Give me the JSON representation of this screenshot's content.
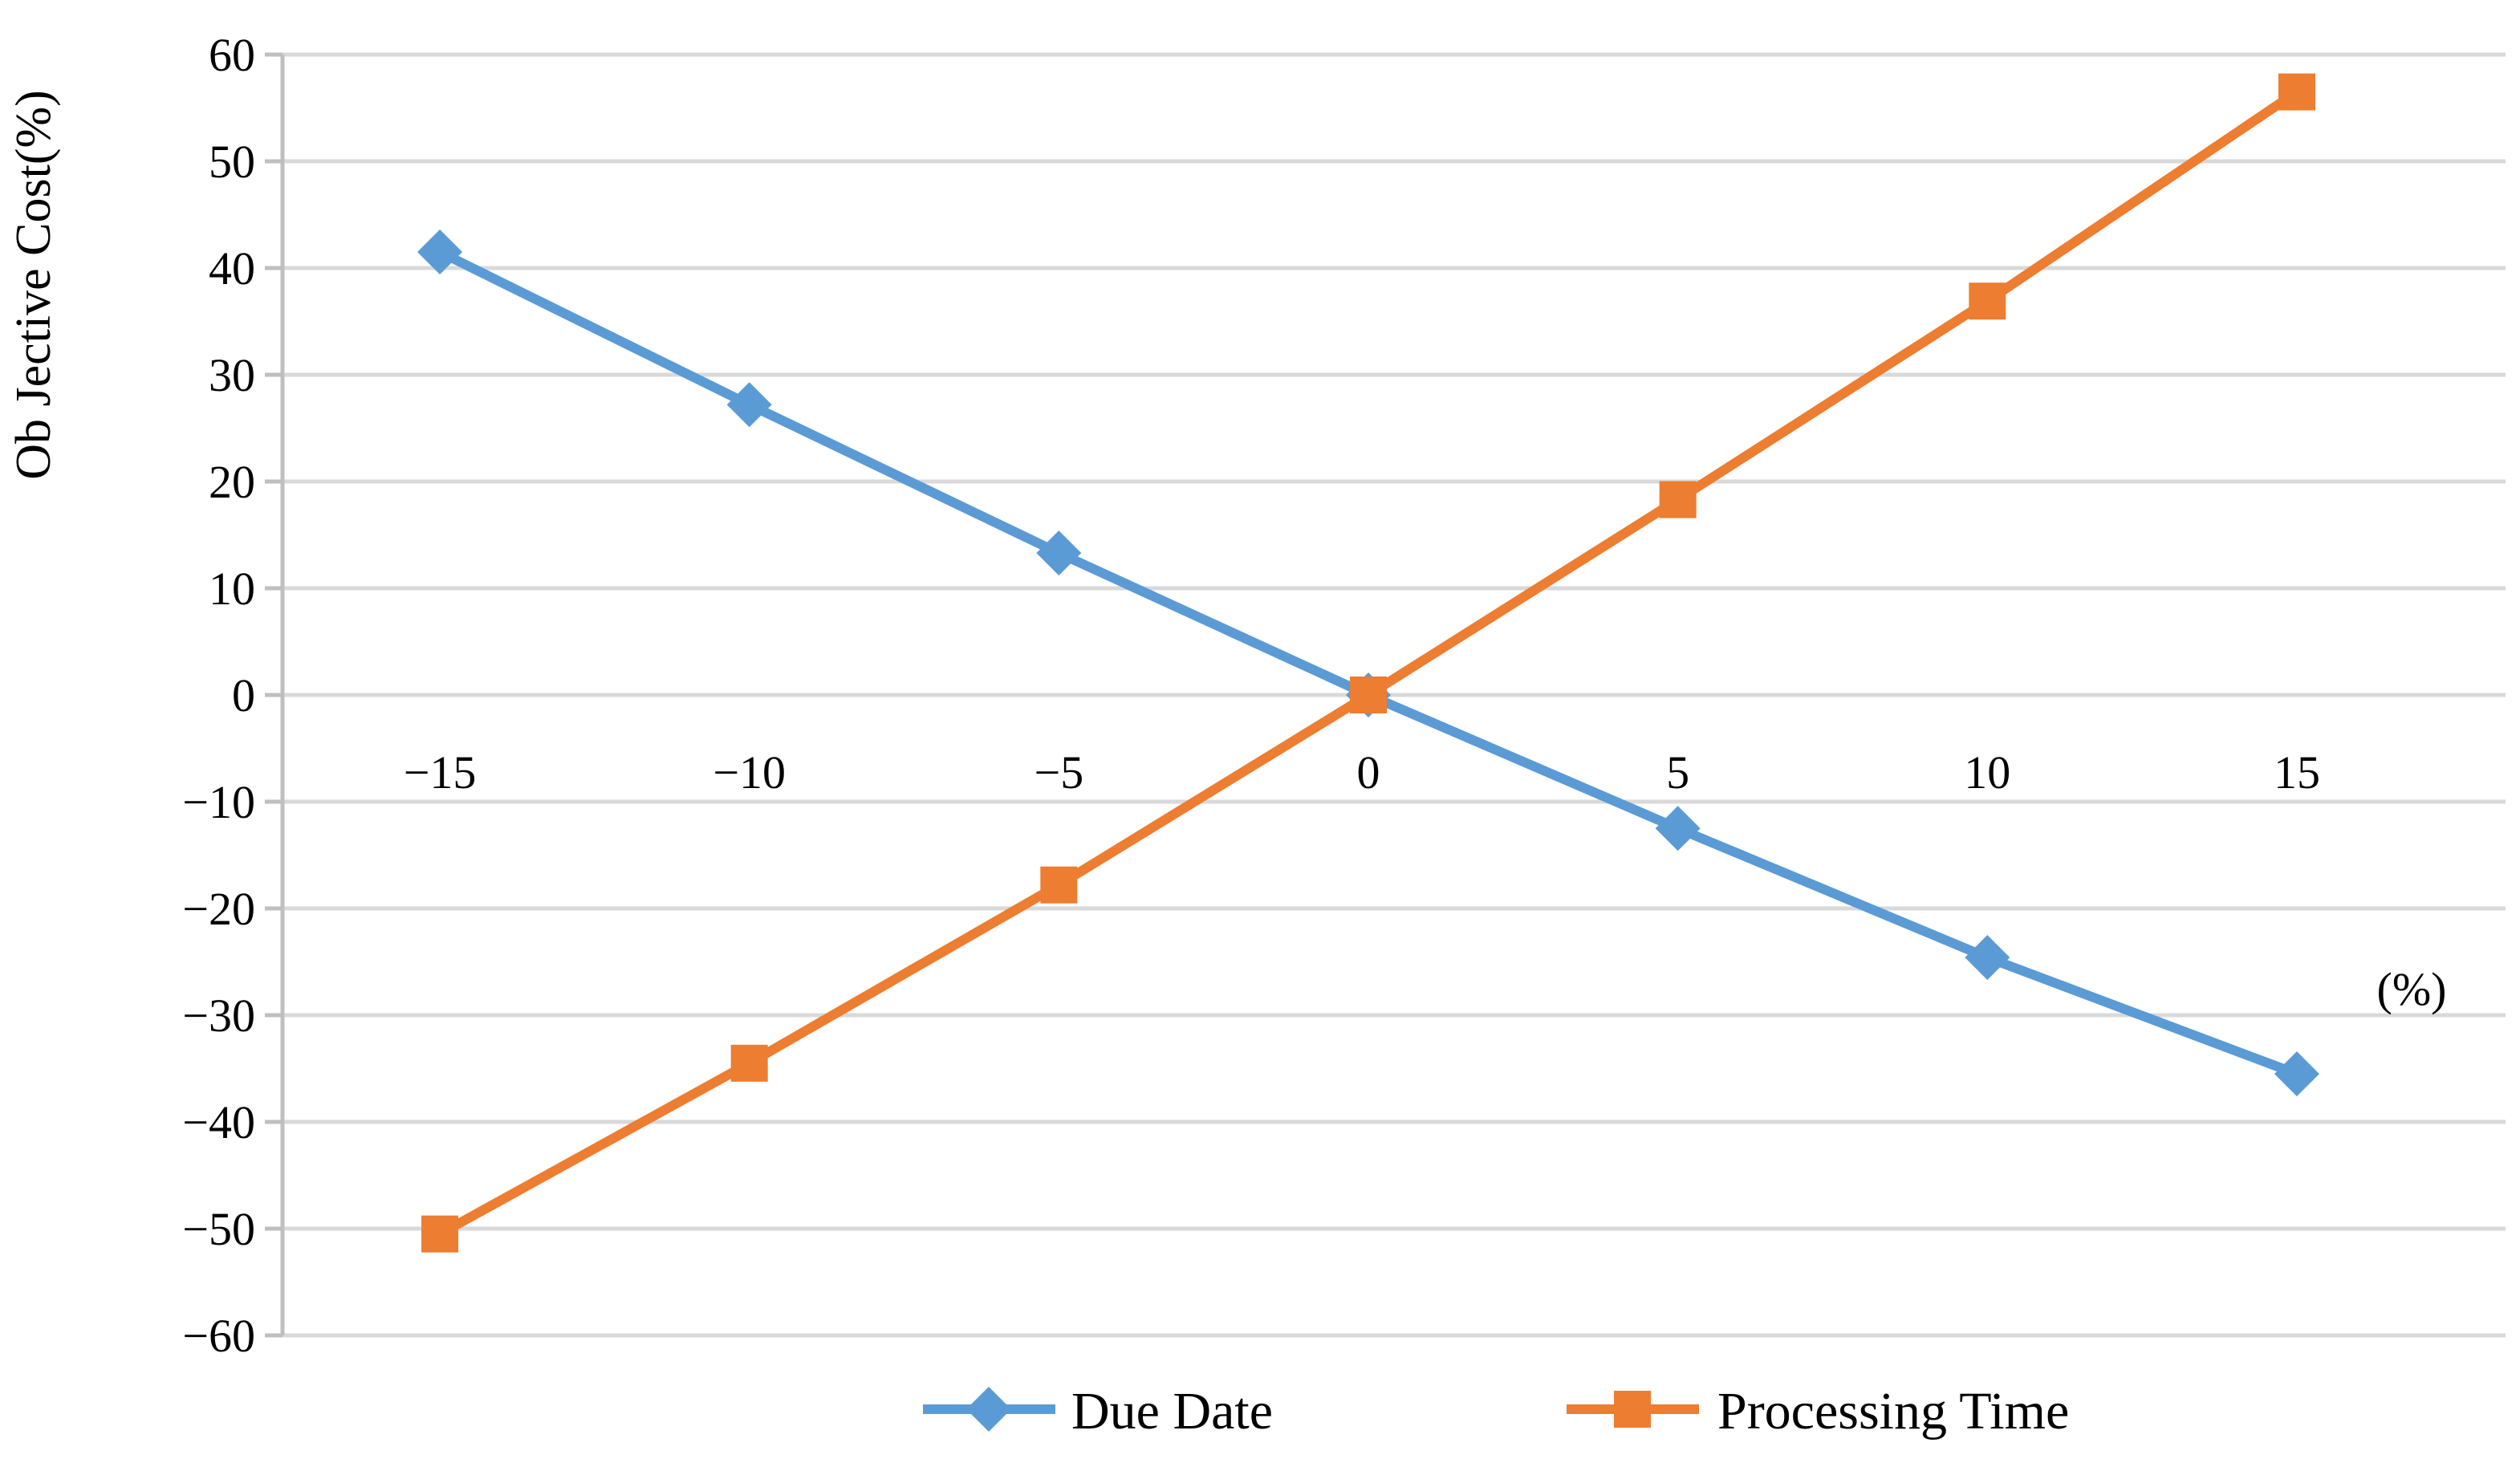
{
  "chart_data": {
    "type": "line",
    "title": "",
    "ylabel": "Ob Jective Cost(%)",
    "xlabel": "",
    "x_axis_unit_label": "(%)",
    "x": [
      -15,
      -10,
      -5,
      0,
      5,
      10,
      15
    ],
    "series": [
      {
        "name": "Due Date",
        "color": "#5B9BD5",
        "marker": "diamond",
        "values": [
          41.5,
          27.2,
          13.3,
          0,
          -12.5,
          -24.6,
          -35.5
        ]
      },
      {
        "name": "Processing Time",
        "color": "#ED7D31",
        "marker": "square",
        "values": [
          -50.5,
          -34.5,
          -17.8,
          0,
          18.3,
          36.9,
          56.5
        ]
      }
    ],
    "ylim": [
      -60,
      60
    ],
    "ytick_step": 10,
    "grid": true,
    "legend_position": "bottom",
    "colors": {
      "gridline": "#D9D9D9",
      "axis_line": "#BFBFBF",
      "text": "#000000",
      "background": "#FFFFFF"
    }
  }
}
